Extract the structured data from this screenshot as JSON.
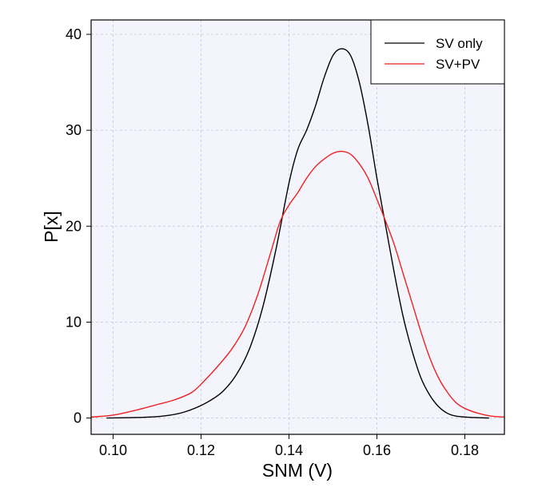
{
  "chart_data": {
    "type": "line",
    "xlabel": "SNM (V)",
    "ylabel": "P[x]",
    "xlim": [
      0.095,
      0.189
    ],
    "ylim": [
      -1.7,
      41.5
    ],
    "xticks": [
      0.1,
      0.12,
      0.14,
      0.16,
      0.18
    ],
    "xtick_labels": [
      "0.10",
      "0.12",
      "0.14",
      "0.16",
      "0.18"
    ],
    "yticks": [
      0,
      10,
      20,
      30,
      40
    ],
    "ytick_labels": [
      "0",
      "10",
      "20",
      "30",
      "40"
    ],
    "grid": true,
    "legend_position": "top-right",
    "background": "#f4f4fc",
    "series": [
      {
        "name": "SV only",
        "color": "#000000",
        "points": [
          [
            0.0985,
            0.0
          ],
          [
            0.105,
            0.05
          ],
          [
            0.11,
            0.15
          ],
          [
            0.113,
            0.3
          ],
          [
            0.116,
            0.6
          ],
          [
            0.119,
            1.1
          ],
          [
            0.122,
            1.8
          ],
          [
            0.125,
            2.8
          ],
          [
            0.128,
            4.5
          ],
          [
            0.131,
            7.2
          ],
          [
            0.134,
            11.5
          ],
          [
            0.137,
            17.5
          ],
          [
            0.14,
            24.5
          ],
          [
            0.142,
            28.0
          ],
          [
            0.144,
            30.0
          ],
          [
            0.146,
            32.5
          ],
          [
            0.148,
            35.5
          ],
          [
            0.15,
            37.8
          ],
          [
            0.152,
            38.5
          ],
          [
            0.154,
            37.8
          ],
          [
            0.156,
            35.0
          ],
          [
            0.158,
            30.5
          ],
          [
            0.16,
            25.0
          ],
          [
            0.162,
            20.0
          ],
          [
            0.164,
            15.0
          ],
          [
            0.166,
            10.5
          ],
          [
            0.168,
            7.0
          ],
          [
            0.17,
            4.2
          ],
          [
            0.172,
            2.4
          ],
          [
            0.174,
            1.2
          ],
          [
            0.176,
            0.5
          ],
          [
            0.178,
            0.2
          ],
          [
            0.182,
            0.05
          ],
          [
            0.1855,
            0.0
          ]
        ]
      },
      {
        "name": "SV+PV",
        "color": "#ee2222",
        "points": [
          [
            0.095,
            0.1
          ],
          [
            0.1,
            0.3
          ],
          [
            0.105,
            0.8
          ],
          [
            0.11,
            1.4
          ],
          [
            0.114,
            1.9
          ],
          [
            0.118,
            2.7
          ],
          [
            0.121,
            4.0
          ],
          [
            0.124,
            5.5
          ],
          [
            0.127,
            7.2
          ],
          [
            0.13,
            9.5
          ],
          [
            0.133,
            13.0
          ],
          [
            0.136,
            17.5
          ],
          [
            0.138,
            20.5
          ],
          [
            0.14,
            22.2
          ],
          [
            0.142,
            23.5
          ],
          [
            0.144,
            25.0
          ],
          [
            0.146,
            26.2
          ],
          [
            0.148,
            27.0
          ],
          [
            0.15,
            27.6
          ],
          [
            0.152,
            27.8
          ],
          [
            0.154,
            27.5
          ],
          [
            0.156,
            26.5
          ],
          [
            0.158,
            25.0
          ],
          [
            0.16,
            22.8
          ],
          [
            0.162,
            20.5
          ],
          [
            0.164,
            18.0
          ],
          [
            0.166,
            15.0
          ],
          [
            0.168,
            12.0
          ],
          [
            0.17,
            9.0
          ],
          [
            0.172,
            6.3
          ],
          [
            0.174,
            4.2
          ],
          [
            0.176,
            2.7
          ],
          [
            0.178,
            1.6
          ],
          [
            0.18,
            1.0
          ],
          [
            0.183,
            0.5
          ],
          [
            0.186,
            0.2
          ],
          [
            0.189,
            0.1
          ]
        ]
      }
    ]
  }
}
